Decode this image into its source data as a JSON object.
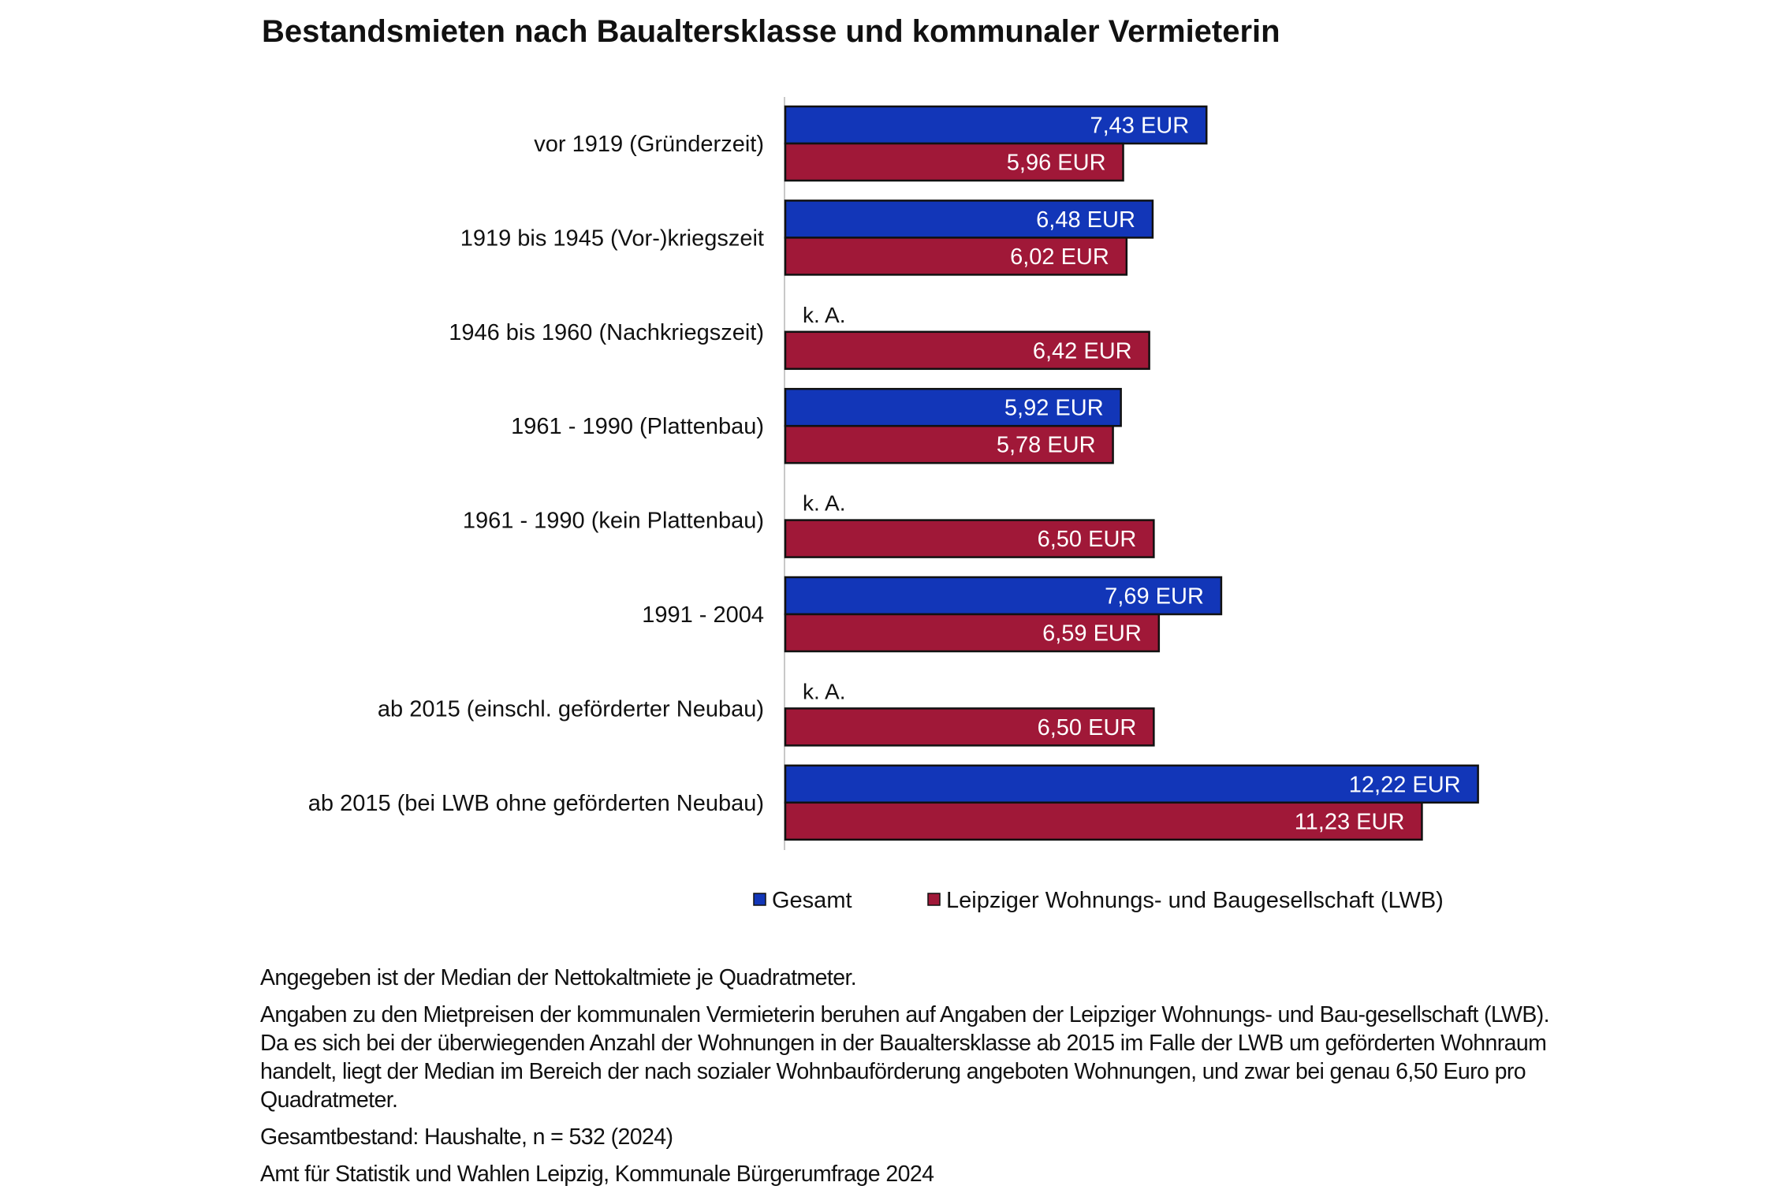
{
  "chart_data": {
    "type": "bar",
    "orientation": "horizontal",
    "title": "Bestandsmieten nach Baualtersklasse und kommunaler Vermieterin",
    "categories": [
      "vor 1919 (Gründerzeit)",
      "1919 bis 1945 (Vor-)kriegszeit",
      "1946 bis 1960 (Nachkriegszeit)",
      "1961 - 1990 (Plattenbau)",
      "1961 - 1990 (kein Plattenbau)",
      "1991 - 2004",
      "ab 2015 (einschl. geförderter Neubau)",
      "ab 2015 (bei LWB ohne geförderten Neubau)"
    ],
    "series": [
      {
        "name": "Gesamt",
        "color": "#1236b8",
        "values": [
          7.43,
          6.48,
          null,
          5.92,
          null,
          7.69,
          null,
          12.22
        ],
        "labels": [
          "7,43 EUR",
          "6,48 EUR",
          "k. A.",
          "5,92 EUR",
          "k. A.",
          "7,69 EUR",
          "k. A.",
          "12,22 EUR"
        ]
      },
      {
        "name": "Leipziger Wohnungs- und Baugesellschaft  (LWB)",
        "color": "#a01838",
        "values": [
          5.96,
          6.02,
          6.42,
          5.78,
          6.5,
          6.59,
          6.5,
          11.23
        ],
        "labels": [
          "5,96 EUR",
          "6,02 EUR",
          "6,42 EUR",
          "5,78 EUR",
          "6,50 EUR",
          "6,59 EUR",
          "6,50 EUR",
          "11,23 EUR"
        ]
      }
    ],
    "unit": "EUR",
    "xlim": [
      0,
      13
    ],
    "grid": false,
    "legend_position": "bottom"
  },
  "notes": [
    "Angegeben ist der Median der Nettokaltmiete je Quadratmeter.",
    "Angaben zu den Mietpreisen der kommunalen Vermieterin beruhen auf Angaben der Leipziger Wohnungs- und Bau-gesellschaft (LWB). Da es sich bei der überwiegenden Anzahl der Wohnungen in der Baualtersklasse ab 2015 im Falle der LWB um geförderten Wohnraum handelt, liegt der Median im Bereich der nach sozialer Wohnbauförderung angeboten Wohnungen, und zwar bei genau 6,50 Euro pro Quadratmeter.",
    "Gesamtbestand: Haushalte, n = 532 (2024)",
    "Amt für Statistik und Wahlen Leipzig, Kommunale Bürgerumfrage 2024"
  ]
}
